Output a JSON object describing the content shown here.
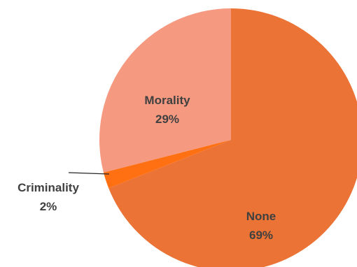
{
  "chart_data": {
    "type": "pie",
    "title": "",
    "slices": [
      {
        "label": "None",
        "value": 69,
        "display": "69%",
        "color": "#ea7335"
      },
      {
        "label": "Criminality",
        "value": 2,
        "display": "2%",
        "color": "#ff7013"
      },
      {
        "label": "Morality",
        "value": 29,
        "display": "29%",
        "color": "#f59a80"
      }
    ],
    "legend": "none",
    "data_labels": "category name and percentage"
  }
}
